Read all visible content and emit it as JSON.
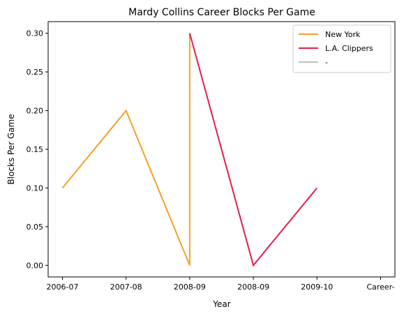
{
  "chart_data": {
    "type": "line",
    "title": "Mardy Collins Career Blocks Per Game",
    "xlabel": "Year",
    "ylabel": "Blocks Per Game",
    "categories": [
      "2006-07",
      "2007-08",
      "2008-09",
      "2008-09",
      "2009-10",
      "Career-"
    ],
    "ylim": [
      -0.015,
      0.315
    ],
    "yticks": [
      0.0,
      0.05,
      0.1,
      0.15,
      0.2,
      0.25,
      0.3
    ],
    "ytick_labels": [
      "0.00",
      "0.05",
      "0.10",
      "0.15",
      "0.20",
      "0.25",
      "0.30"
    ],
    "grid": false,
    "legend_position": "top-right",
    "series": [
      {
        "name": "New York",
        "color": "#f5a023",
        "points": [
          {
            "x": 0,
            "y": 0.1
          },
          {
            "x": 1,
            "y": 0.2
          },
          {
            "x": 2,
            "y": 0.0
          },
          {
            "x": 2,
            "y": 0.3
          }
        ]
      },
      {
        "name": "L.A. Clippers",
        "color": "#e31d4b",
        "points": [
          {
            "x": 2,
            "y": 0.3
          },
          {
            "x": 3,
            "y": 0.0
          },
          {
            "x": 4,
            "y": 0.1
          }
        ]
      },
      {
        "name": "-",
        "color": "#c0c0c0",
        "points": []
      }
    ]
  }
}
